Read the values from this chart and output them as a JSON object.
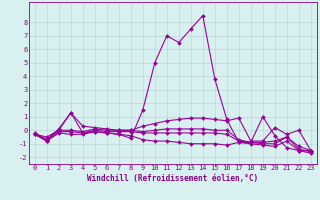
{
  "xlabel": "Windchill (Refroidissement éolien,°C)",
  "x_hours": [
    0,
    1,
    2,
    3,
    4,
    5,
    6,
    7,
    8,
    9,
    10,
    11,
    12,
    13,
    14,
    15,
    16,
    17,
    18,
    19,
    20,
    21,
    22,
    23
  ],
  "lines": [
    [
      -0.3,
      -0.7,
      0.1,
      1.3,
      -0.2,
      -0.1,
      -0.2,
      -0.3,
      -0.6,
      1.5,
      5.0,
      7.0,
      6.5,
      7.5,
      8.5,
      3.8,
      0.8,
      -0.9,
      -0.9,
      1.0,
      -0.4,
      -1.3,
      -1.5,
      -1.5
    ],
    [
      -0.3,
      -0.5,
      0.0,
      1.3,
      0.3,
      0.2,
      0.1,
      0.0,
      0.0,
      0.3,
      0.5,
      0.7,
      0.8,
      0.9,
      0.9,
      0.8,
      0.7,
      0.9,
      -0.8,
      -0.8,
      0.2,
      -0.3,
      0.0,
      -1.5
    ],
    [
      -0.2,
      -0.7,
      0.0,
      0.0,
      -0.1,
      0.1,
      0.0,
      0.0,
      0.0,
      -0.1,
      0.0,
      0.1,
      0.1,
      0.1,
      0.1,
      0.0,
      0.0,
      -0.7,
      -0.9,
      -0.9,
      -0.8,
      -0.5,
      -1.2,
      -1.5
    ],
    [
      -0.3,
      -0.8,
      -0.1,
      -0.1,
      -0.2,
      0.0,
      -0.1,
      -0.1,
      -0.1,
      -0.2,
      -0.2,
      -0.2,
      -0.2,
      -0.2,
      -0.2,
      -0.2,
      -0.3,
      -0.8,
      -0.9,
      -1.0,
      -1.0,
      -0.5,
      -1.4,
      -1.6
    ],
    [
      -0.3,
      -0.8,
      -0.2,
      -0.3,
      -0.3,
      -0.1,
      -0.2,
      -0.3,
      -0.4,
      -0.7,
      -0.8,
      -0.8,
      -0.9,
      -1.0,
      -1.0,
      -1.0,
      -1.1,
      -0.9,
      -1.0,
      -1.1,
      -1.2,
      -0.8,
      -1.5,
      -1.7
    ]
  ],
  "line_color": "#990099",
  "marker": "D",
  "markersize": 2.0,
  "linewidth": 0.8,
  "ylim": [
    -2.5,
    9.5
  ],
  "yticks": [
    -2,
    -1,
    0,
    1,
    2,
    3,
    4,
    5,
    6,
    7,
    8
  ],
  "bg_color": "#d8f0f0",
  "grid_color": "#b8d8d8",
  "axes_color": "#880088",
  "tick_fontsize": 5.0,
  "xlabel_fontsize": 5.5
}
